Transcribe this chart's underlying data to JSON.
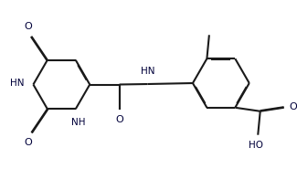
{
  "bg": "#ffffff",
  "lc": "#1a1a1a",
  "tc": "#00003a",
  "lw": 1.5,
  "dbo": 0.012,
  "fs": 7.5,
  "xlim": [
    0,
    6.5
  ],
  "ylim": [
    0,
    3.7
  ]
}
